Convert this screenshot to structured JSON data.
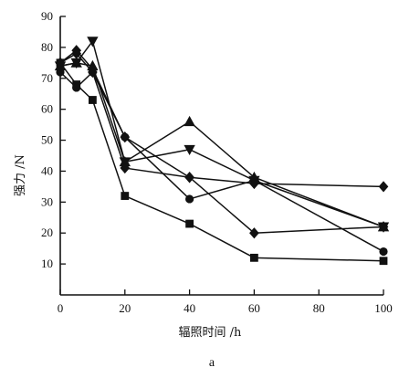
{
  "chart_data": {
    "type": "line",
    "xlabel": "辐照时间 /h",
    "ylabel": "强力 /N",
    "panel_label": "a",
    "xlim": [
      0,
      100
    ],
    "ylim": [
      0,
      90
    ],
    "xticks": [
      0,
      20,
      40,
      60,
      80,
      100
    ],
    "yticks": [
      10,
      20,
      30,
      40,
      50,
      60,
      70,
      80,
      90
    ],
    "grid": false,
    "legend": "none",
    "series": [
      {
        "marker": "square",
        "points": [
          [
            0,
            75
          ],
          [
            5,
            68
          ],
          [
            10,
            63
          ],
          [
            20,
            32
          ],
          [
            40,
            23
          ],
          [
            60,
            12
          ],
          [
            100,
            11
          ]
        ]
      },
      {
        "marker": "circle",
        "points": [
          [
            0,
            72
          ],
          [
            5,
            67
          ],
          [
            10,
            72
          ],
          [
            20,
            51
          ],
          [
            40,
            31
          ],
          [
            60,
            37
          ],
          [
            100,
            14
          ]
        ]
      },
      {
        "marker": "triangle-up",
        "points": [
          [
            0,
            74
          ],
          [
            5,
            75
          ],
          [
            10,
            74
          ],
          [
            20,
            43
          ],
          [
            40,
            56
          ],
          [
            60,
            38
          ],
          [
            100,
            22
          ]
        ]
      },
      {
        "marker": "triangle-down",
        "points": [
          [
            0,
            74
          ],
          [
            5,
            75
          ],
          [
            10,
            82
          ],
          [
            20,
            43
          ],
          [
            40,
            47
          ],
          [
            60,
            37
          ],
          [
            100,
            22
          ]
        ]
      },
      {
        "marker": "diamond",
        "points": [
          [
            0,
            75
          ],
          [
            5,
            79
          ],
          [
            10,
            73
          ],
          [
            20,
            51
          ],
          [
            40,
            38
          ],
          [
            60,
            36
          ],
          [
            100,
            35
          ]
        ]
      },
      {
        "marker": "diamond",
        "points": [
          [
            0,
            75
          ],
          [
            5,
            78
          ],
          [
            10,
            72
          ],
          [
            20,
            41
          ],
          [
            40,
            38
          ],
          [
            60,
            20
          ],
          [
            100,
            22
          ]
        ]
      }
    ]
  }
}
